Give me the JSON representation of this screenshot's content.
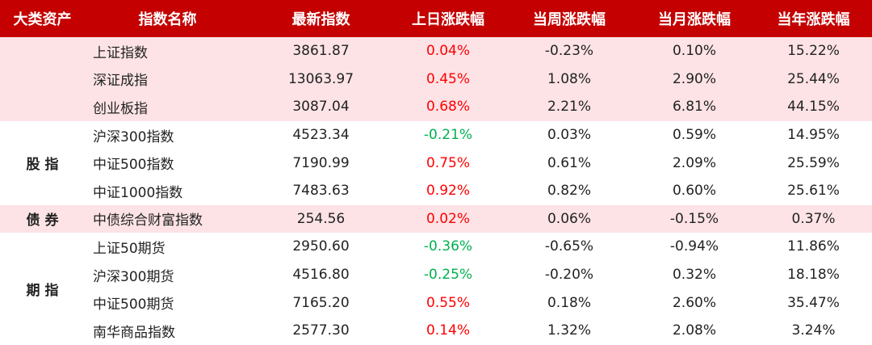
{
  "table": {
    "header": [
      "大类资产",
      "指数名称",
      "最新指数",
      "上日涨跌幅",
      "当周涨跌幅",
      "当月涨跌幅",
      "当年涨跌幅"
    ],
    "groups": [
      {
        "rows": [
          [
            "上证指数",
            "3861.87",
            "0.04%",
            "-0.23%",
            "0.10%",
            "15.22%"
          ],
          [
            "深证成指",
            "13063.97",
            "0.45%",
            "1.08%",
            "2.90%",
            "25.44%"
          ],
          [
            "创业板指",
            "3087.04",
            "0.68%",
            "2.21%",
            "6.81%",
            "44.15%"
          ]
        ]
      },
      {
        "label": "股 指",
        "rows": [
          [
            "沪深300指数",
            "4523.34",
            "-0.21%",
            "0.03%",
            "0.59%",
            "14.95%"
          ],
          [
            "中证500指数",
            "7190.99",
            "0.75%",
            "0.61%",
            "2.09%",
            "25.59%"
          ],
          [
            "中证1000指数",
            "7483.63",
            "0.92%",
            "0.82%",
            "0.60%",
            "25.61%"
          ]
        ]
      },
      {
        "label": "债 券",
        "rows": [
          [
            "中债综合财富指数",
            "254.56",
            "0.02%",
            "0.06%",
            "-0.15%",
            "0.37%"
          ]
        ]
      },
      {
        "label": "期 指",
        "rows": [
          [
            "上证50期货",
            "2950.60",
            "-0.36%",
            "-0.65%",
            "-0.94%",
            "11.86%"
          ],
          [
            "沪深300期货",
            "4516.80",
            "-0.25%",
            "-0.20%",
            "0.32%",
            "18.18%"
          ],
          [
            "中证500期货",
            "7165.20",
            "0.55%",
            "0.18%",
            "2.60%",
            "35.47%"
          ],
          [
            "南华商品指数",
            "2577.30",
            "0.14%",
            "1.32%",
            "2.08%",
            "3.24%"
          ]
        ]
      }
    ]
  }
}
